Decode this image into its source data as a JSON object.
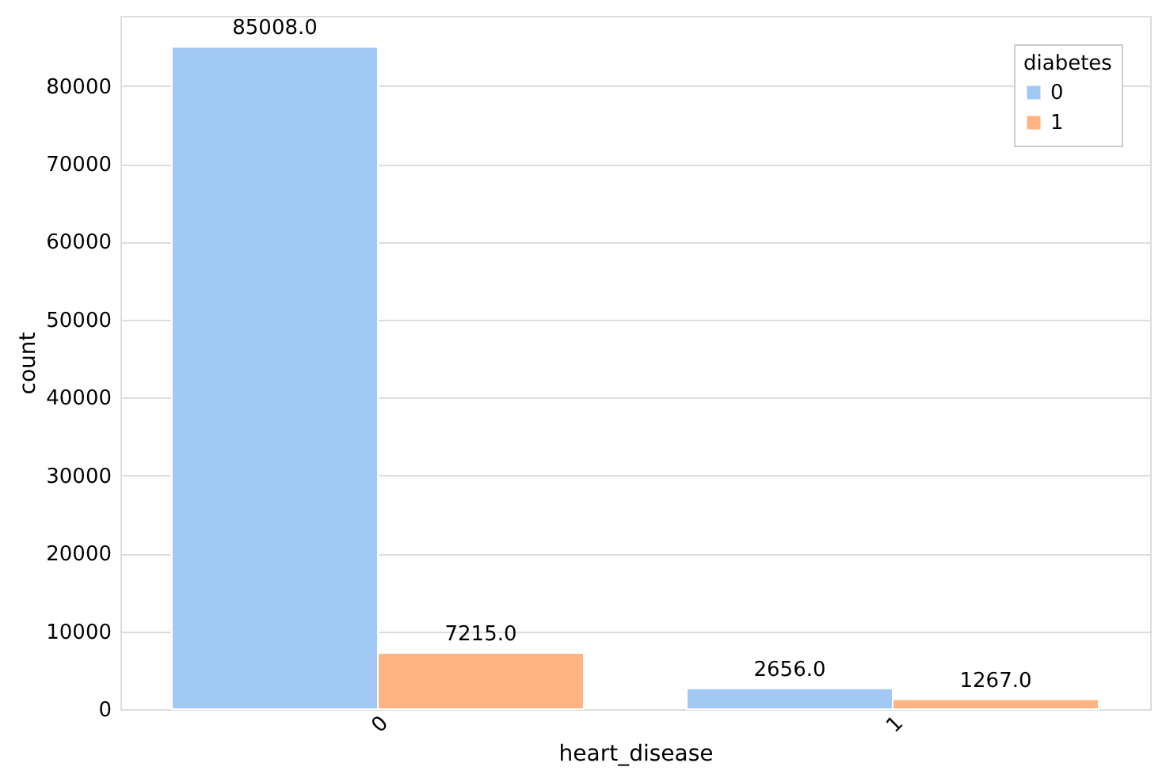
{
  "chart_data": {
    "type": "bar",
    "xlabel": "heart_disease",
    "ylabel": "count",
    "legend_title": "diabetes",
    "categories": [
      "0",
      "1"
    ],
    "series": [
      {
        "name": "0",
        "color": "#a1c9f4",
        "values": [
          85008,
          2656
        ],
        "value_labels": [
          "85008.0",
          "2656.0"
        ]
      },
      {
        "name": "1",
        "color": "#ffb482",
        "values": [
          7215,
          1267
        ],
        "value_labels": [
          "7215.0",
          "1267.0"
        ]
      }
    ],
    "ylim": [
      0,
      89000
    ],
    "yticks": [
      0,
      10000,
      20000,
      30000,
      40000,
      50000,
      60000,
      70000,
      80000
    ],
    "grid": "y",
    "legend": "top right"
  }
}
